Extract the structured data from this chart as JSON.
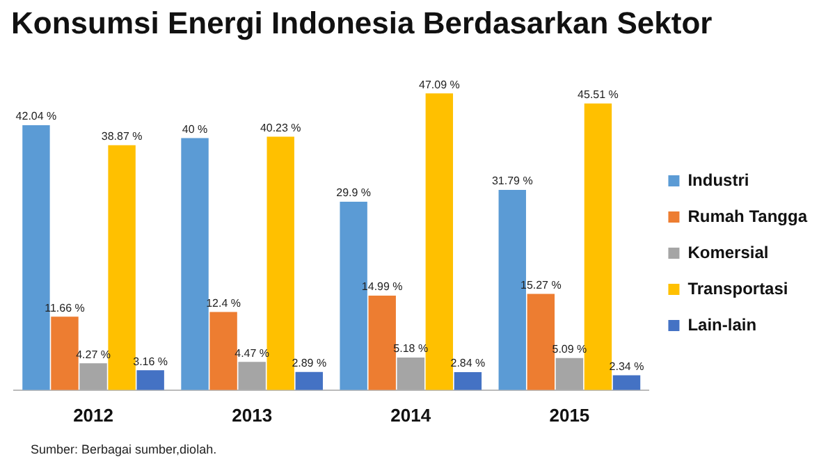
{
  "chart_data": {
    "type": "bar",
    "title": "Konsumsi Energi Indonesia Berdasarkan Sektor",
    "categories": [
      "2012",
      "2013",
      "2014",
      "2015"
    ],
    "series": [
      {
        "name": "Industri",
        "color": "#5b9bd5",
        "values": [
          42.04,
          40,
          29.9,
          31.79
        ],
        "value_labels": [
          "42.04 %",
          "40 %",
          "29.9 %",
          "31.79 %"
        ]
      },
      {
        "name": "Rumah Tangga",
        "color": "#ed7d31",
        "values": [
          11.66,
          12.4,
          14.99,
          15.27
        ],
        "value_labels": [
          "11.66 %",
          "12.4 %",
          "14.99 %",
          "15.27 %"
        ]
      },
      {
        "name": "Komersial",
        "color": "#a5a5a5",
        "values": [
          4.27,
          4.47,
          5.18,
          5.09
        ],
        "value_labels": [
          "4.27 %",
          "4.47 %",
          "5.18 %",
          "5.09 %"
        ]
      },
      {
        "name": "Transportasi",
        "color": "#ffc000",
        "values": [
          38.87,
          40.23,
          47.09,
          45.51
        ],
        "value_labels": [
          "38.87 %",
          "40.23 %",
          "47.09 %",
          "45.51 %"
        ]
      },
      {
        "name": "Lain-lain",
        "color": "#4472c4",
        "values": [
          3.16,
          2.89,
          2.84,
          2.34
        ],
        "value_labels": [
          "3.16 %",
          "2.89 %",
          "2.84 %",
          "2.34 %"
        ]
      }
    ],
    "legend": "right",
    "grid": false,
    "tick_labels": "x",
    "annotations": [
      "Sumber: Berbagai sumber,diolah."
    ]
  }
}
